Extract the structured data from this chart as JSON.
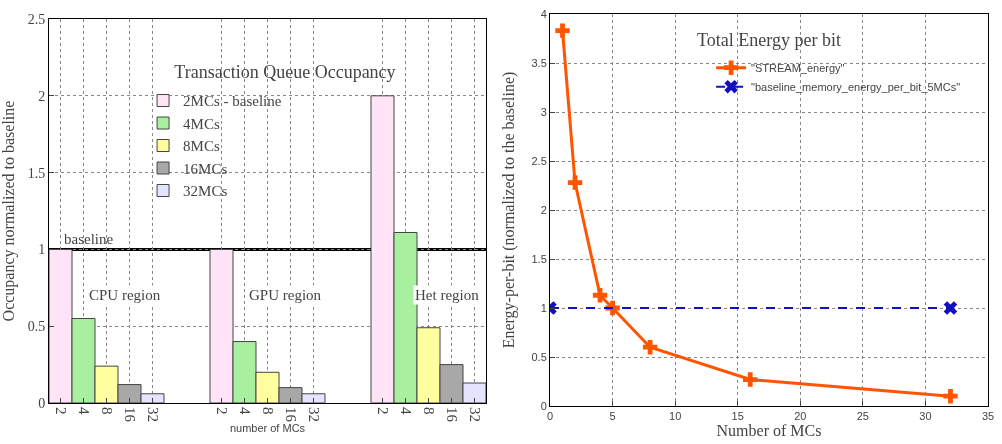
{
  "chart_data": [
    {
      "type": "bar",
      "title": "Transaction Queue Occupancy",
      "xlabel": "number of MCs",
      "ylabel": "Occupancy normalized to baseline",
      "categories": [
        "2",
        "4",
        "8",
        "16",
        "32",
        null,
        null,
        "2",
        "4",
        "8",
        "16",
        "32",
        null,
        null,
        "2",
        "4",
        "8",
        "16",
        "32"
      ],
      "series": [
        {
          "name": "2MCs - baseline",
          "color": "#ffe4f8",
          "values": [
            1.0,
            null,
            null,
            null,
            null,
            null,
            null,
            1.0,
            null,
            null,
            null,
            null,
            null,
            null,
            2.0,
            null,
            null,
            null,
            null
          ]
        },
        {
          "name": "4MCs",
          "color": "#a8f0a0",
          "values": [
            null,
            0.55,
            null,
            null,
            null,
            null,
            null,
            null,
            0.4,
            null,
            null,
            null,
            null,
            null,
            null,
            1.11,
            null,
            null,
            null
          ]
        },
        {
          "name": "8MCs",
          "color": "#ffffa0",
          "values": [
            null,
            null,
            0.24,
            null,
            null,
            null,
            null,
            null,
            null,
            0.2,
            null,
            null,
            null,
            null,
            null,
            null,
            0.49,
            null,
            null
          ]
        },
        {
          "name": "16MCs",
          "color": "#a8a8a8",
          "values": [
            null,
            null,
            null,
            0.12,
            null,
            null,
            null,
            null,
            null,
            null,
            0.1,
            null,
            null,
            null,
            null,
            null,
            null,
            0.25,
            null
          ]
        },
        {
          "name": "32MCs",
          "color": "#e4e4ff",
          "values": [
            null,
            null,
            null,
            null,
            0.06,
            null,
            null,
            null,
            null,
            null,
            null,
            0.06,
            null,
            null,
            null,
            null,
            null,
            null,
            0.13
          ]
        }
      ],
      "ylim": [
        0,
        2.5
      ],
      "yticks": [
        0,
        0.5,
        1,
        1.5,
        2,
        2.5
      ],
      "grid": true,
      "legend": "top",
      "ref_lines": [
        {
          "axis": "y",
          "value": 1,
          "label": "baseline",
          "color": "#000000"
        }
      ],
      "annotations": [
        "CPU region",
        "GPU region",
        "Het region"
      ]
    },
    {
      "type": "line",
      "title": "Total Energy per bit",
      "xlabel": "Number of MCs",
      "ylabel": "Energy-per-bit (normalized to the baseline)",
      "series": [
        {
          "name": "\"STREAM_energy\"",
          "color": "#ff5500",
          "x": [
            1,
            2,
            4,
            5,
            8,
            16,
            32
          ],
          "values": [
            3.83,
            2.28,
            1.13,
            1.0,
            0.6,
            0.27,
            0.1
          ],
          "marker": "cross",
          "line_style": "solid"
        },
        {
          "name": "\"baseline_memory_energy_per_bit_5MCs\"",
          "color": "#1010c0",
          "x": [
            0,
            32
          ],
          "values": [
            1,
            1
          ],
          "marker": "x",
          "line_style": "dashed"
        }
      ],
      "xlim": [
        0,
        35
      ],
      "xticks": [
        0,
        5,
        10,
        15,
        20,
        25,
        30,
        35
      ],
      "ylim": [
        0,
        4
      ],
      "yticks": [
        0,
        0.5,
        1,
        1.5,
        2,
        2.5,
        3,
        3.5,
        4
      ],
      "grid": true,
      "legend": "top right"
    }
  ]
}
